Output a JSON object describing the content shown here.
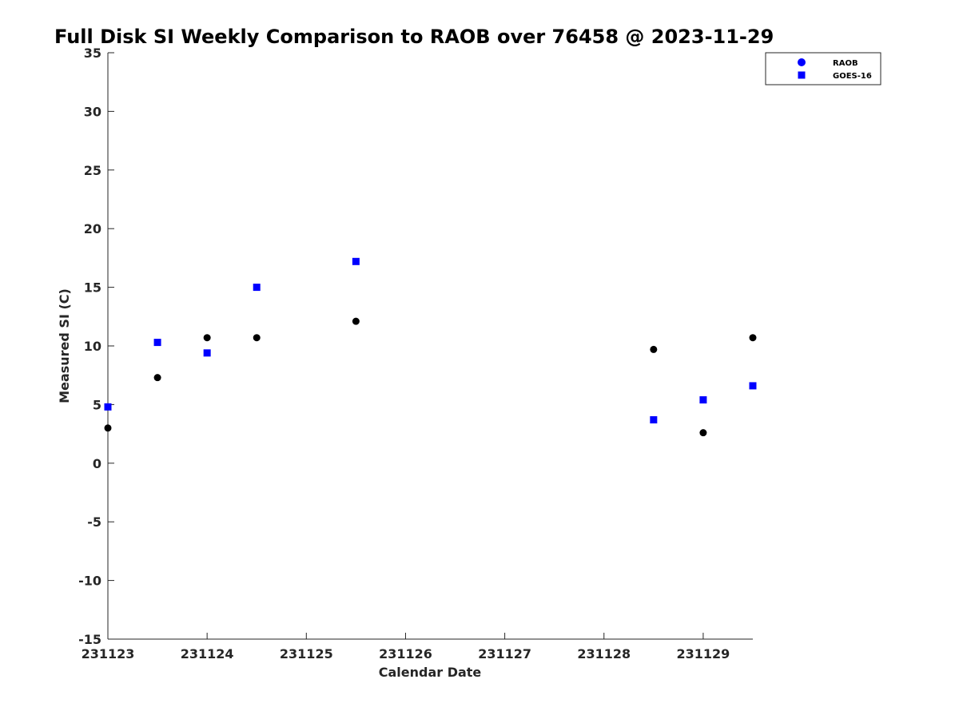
{
  "chart_data": {
    "type": "scatter",
    "title": "Full Disk SI Weekly Comparison to RAOB over 76458 @ 2023-11-29",
    "xlabel": "Calendar Date",
    "ylabel": "Measured SI (C)",
    "xlim": [
      231123,
      231129.5
    ],
    "ylim": [
      -15,
      35
    ],
    "x_ticks": [
      231123,
      231124,
      231125,
      231126,
      231127,
      231128,
      231129
    ],
    "x_tick_labels": [
      "231123",
      "231124",
      "231125",
      "231126",
      "231127",
      "231128",
      "231129"
    ],
    "y_ticks": [
      -15,
      -10,
      -5,
      0,
      5,
      10,
      15,
      20,
      25,
      30,
      35
    ],
    "y_tick_labels": [
      "-15",
      "-10",
      "-5",
      "0",
      "5",
      "10",
      "15",
      "20",
      "25",
      "30",
      "35"
    ],
    "grid": false,
    "legend_position": "top-right",
    "series": [
      {
        "name": "RAOB",
        "marker": "circle",
        "color": "#000000",
        "legend_color": "#0000ff",
        "points": [
          {
            "x": 231123.0,
            "y": 3.0
          },
          {
            "x": 231123.5,
            "y": 7.3
          },
          {
            "x": 231124.0,
            "y": 10.7
          },
          {
            "x": 231124.5,
            "y": 10.7
          },
          {
            "x": 231125.5,
            "y": 12.1
          },
          {
            "x": 231128.5,
            "y": 9.7
          },
          {
            "x": 231129.0,
            "y": 2.6
          },
          {
            "x": 231129.5,
            "y": 10.7
          }
        ]
      },
      {
        "name": "GOES-16",
        "marker": "square",
        "color": "#0000ff",
        "legend_color": "#0000ff",
        "points": [
          {
            "x": 231123.0,
            "y": 4.8
          },
          {
            "x": 231123.5,
            "y": 10.3
          },
          {
            "x": 231124.0,
            "y": 9.4
          },
          {
            "x": 231124.5,
            "y": 15.0
          },
          {
            "x": 231125.5,
            "y": 17.2
          },
          {
            "x": 231128.5,
            "y": 3.7
          },
          {
            "x": 231129.0,
            "y": 5.4
          },
          {
            "x": 231129.5,
            "y": 6.6
          }
        ]
      }
    ]
  }
}
